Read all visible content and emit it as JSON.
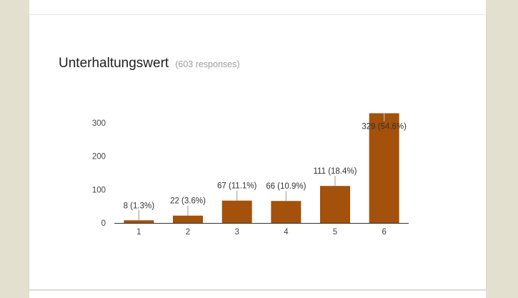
{
  "question": {
    "title": "Unterhaltungswert",
    "responses": "(603 responses)"
  },
  "colors": {
    "bar": "#a3510b",
    "axis": "#333333",
    "label": "#333333"
  },
  "chart_data": {
    "type": "bar",
    "categories": [
      "1",
      "2",
      "3",
      "4",
      "5",
      "6"
    ],
    "values": [
      8,
      22,
      67,
      66,
      111,
      329
    ],
    "data_labels": [
      "8 (1.3%)",
      "22 (3.6%)",
      "67 (11.1%)",
      "66 (10.9%)",
      "111 (18.4%)",
      "329 (54.6%)"
    ],
    "yticks": [
      0,
      100,
      200,
      300
    ],
    "ylim": [
      0,
      300
    ],
    "grid": false,
    "legend": "none"
  }
}
